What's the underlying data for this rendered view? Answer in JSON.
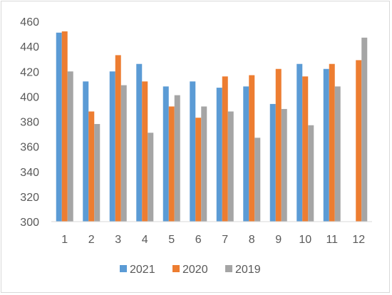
{
  "chart_data": {
    "type": "bar",
    "title": "",
    "xlabel": "",
    "ylabel": "",
    "categories": [
      "1",
      "2",
      "3",
      "4",
      "5",
      "6",
      "7",
      "8",
      "9",
      "10",
      "11",
      "12"
    ],
    "ylim": [
      300,
      460
    ],
    "yticks": [
      300,
      320,
      340,
      360,
      380,
      400,
      420,
      440,
      460
    ],
    "grid": false,
    "legend_position": "bottom",
    "series": [
      {
        "name": "2021",
        "color": "#5B9BD5",
        "values": [
          451,
          412,
          420,
          426,
          408,
          412,
          407,
          408,
          394,
          426,
          422,
          null
        ]
      },
      {
        "name": "2020",
        "color": "#ED7D31",
        "values": [
          452,
          388,
          433,
          412,
          392,
          383,
          416,
          417,
          422,
          416,
          426,
          429
        ]
      },
      {
        "name": "2019",
        "color": "#A5A5A5",
        "values": [
          420,
          378,
          409,
          371,
          401,
          392,
          388,
          367,
          390,
          377,
          408,
          447
        ]
      }
    ]
  }
}
